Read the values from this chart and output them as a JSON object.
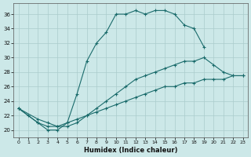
{
  "xlabel": "Humidex (Indice chaleur)",
  "background_color": "#cce8e8",
  "grid_color": "#aacccc",
  "line_color": "#1a6b6b",
  "xlim": [
    -0.5,
    23.5
  ],
  "ylim": [
    19.0,
    37.5
  ],
  "yticks": [
    20,
    22,
    24,
    26,
    28,
    30,
    32,
    34,
    36
  ],
  "xticks": [
    0,
    1,
    2,
    3,
    4,
    5,
    6,
    7,
    8,
    9,
    10,
    11,
    12,
    13,
    14,
    15,
    16,
    17,
    18,
    19,
    20,
    21,
    22,
    23
  ],
  "curve1_x": [
    0,
    1,
    2,
    3,
    4,
    5,
    6,
    7,
    8,
    9,
    10,
    11,
    12,
    13,
    14,
    15,
    16,
    17,
    18,
    19
  ],
  "curve1_y": [
    23,
    22,
    21,
    20,
    20,
    21,
    25,
    29.5,
    32,
    33.5,
    36,
    36,
    36.5,
    36,
    36.5,
    36.5,
    36,
    34.5,
    34,
    31.5
  ],
  "curve2_x": [
    0,
    2,
    3,
    4,
    5,
    6,
    7,
    8,
    9,
    10,
    11,
    12,
    13,
    14,
    15,
    16,
    17,
    18,
    19,
    20,
    21,
    22,
    23
  ],
  "curve2_y": [
    23,
    21.5,
    21,
    20.5,
    20.5,
    21,
    22,
    23,
    24,
    25,
    26,
    27,
    27.5,
    28,
    28.5,
    29,
    29.5,
    29.5,
    30,
    29,
    28,
    27.5,
    27.5
  ],
  "curve3_x": [
    0,
    2,
    3,
    4,
    5,
    6,
    7,
    8,
    9,
    10,
    11,
    12,
    13,
    14,
    15,
    16,
    17,
    18,
    19,
    20,
    21,
    22,
    23
  ],
  "curve3_y": [
    23,
    21,
    20.5,
    20.5,
    21,
    21.5,
    22,
    22.5,
    23,
    23.5,
    24,
    24.5,
    25,
    25.5,
    26,
    26,
    26.5,
    26.5,
    27,
    27,
    27,
    27.5,
    27.5
  ]
}
